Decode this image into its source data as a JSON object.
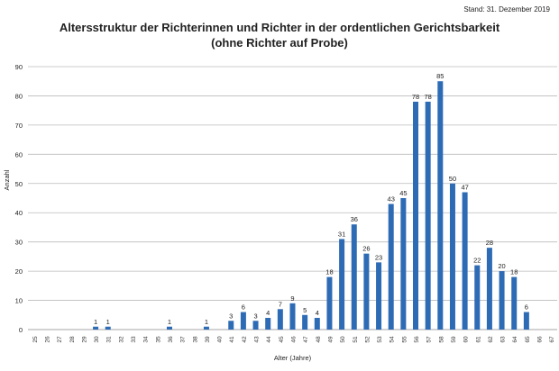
{
  "stand": "Stand: 31. Dezember 2019",
  "chart_data": {
    "type": "bar",
    "title": "Altersstruktur der Richterinnen und Richter in der ordentlichen Gerichtsbarkeit",
    "subtitle": "(ohne Richter auf Probe)",
    "xlabel": "Alter (Jahre)",
    "ylabel": "Anzahl",
    "ylim": [
      0,
      90
    ],
    "yticks": [
      0,
      10,
      20,
      30,
      40,
      50,
      60,
      70,
      80,
      90
    ],
    "grid": true,
    "bar_color": "#2e6bb5",
    "categories": [
      "25",
      "26",
      "27",
      "28",
      "29",
      "30",
      "31",
      "32",
      "33",
      "34",
      "35",
      "36",
      "37",
      "38",
      "39",
      "40",
      "41",
      "42",
      "43",
      "44",
      "45",
      "46",
      "47",
      "48",
      "49",
      "50",
      "51",
      "52",
      "53",
      "54",
      "55",
      "56",
      "57",
      "58",
      "59",
      "60",
      "61",
      "62",
      "63",
      "64",
      "65",
      "66",
      "67"
    ],
    "values": [
      0,
      0,
      0,
      0,
      0,
      1,
      1,
      0,
      0,
      0,
      0,
      1,
      0,
      0,
      1,
      0,
      3,
      6,
      3,
      4,
      7,
      9,
      5,
      4,
      18,
      31,
      36,
      26,
      23,
      43,
      45,
      78,
      78,
      85,
      50,
      47,
      22,
      28,
      20,
      18,
      6,
      0,
      0
    ]
  }
}
